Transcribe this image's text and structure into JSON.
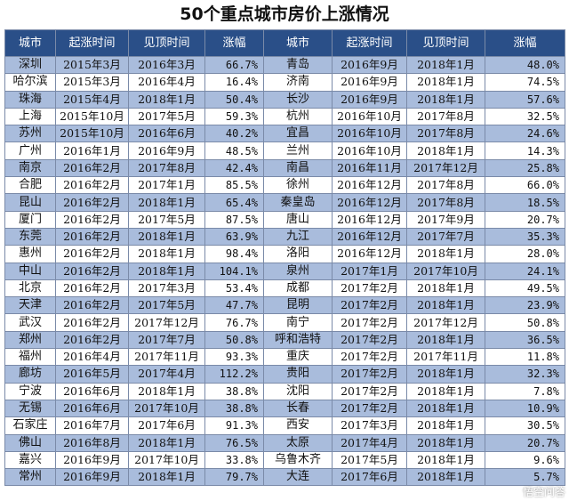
{
  "title": "50个重点城市房价上涨情况",
  "headers": [
    "城市",
    "起涨时间",
    "见顶时间",
    "涨幅",
    "城市",
    "起涨时间",
    "见顶时间",
    "涨幅"
  ],
  "rows": [
    [
      "深圳",
      "2015年3月",
      "2016年3月",
      "66.7%",
      "青岛",
      "2016年9月",
      "2018年1月",
      "48.0%"
    ],
    [
      "哈尔滨",
      "2015年3月",
      "2016年4月",
      "16.4%",
      "济南",
      "2016年9月",
      "2018年1月",
      "74.5%"
    ],
    [
      "珠海",
      "2015年4月",
      "2018年1月",
      "50.4%",
      "长沙",
      "2016年9月",
      "2018年1月",
      "57.6%"
    ],
    [
      "上海",
      "2015年10月",
      "2017年5月",
      "59.3%",
      "杭州",
      "2016年10月",
      "2017年8月",
      "32.5%"
    ],
    [
      "苏州",
      "2015年10月",
      "2016年6月",
      "40.2%",
      "宜昌",
      "2016年10月",
      "2017年8月",
      "24.6%"
    ],
    [
      "广州",
      "2016年1月",
      "2016年9月",
      "48.5%",
      "兰州",
      "2016年10月",
      "2018年1月",
      "14.3%"
    ],
    [
      "南京",
      "2016年2月",
      "2017年8月",
      "42.4%",
      "南昌",
      "2016年11月",
      "2017年12月",
      "25.8%"
    ],
    [
      "合肥",
      "2016年2月",
      "2017年1月",
      "85.5%",
      "徐州",
      "2016年12月",
      "2017年8月",
      "66.0%"
    ],
    [
      "昆山",
      "2016年2月",
      "2018年1月",
      "65.4%",
      "秦皇岛",
      "2016年12月",
      "2017年8月",
      "18.5%"
    ],
    [
      "厦门",
      "2016年2月",
      "2017年5月",
      "87.5%",
      "唐山",
      "2016年12月",
      "2017年9月",
      "20.7%"
    ],
    [
      "东莞",
      "2016年2月",
      "2018年1月",
      "63.9%",
      "九江",
      "2016年12月",
      "2017年7月",
      "35.3%"
    ],
    [
      "惠州",
      "2016年2月",
      "2018年1月",
      "98.4%",
      "洛阳",
      "2016年12月",
      "2018年1月",
      "28.0%"
    ],
    [
      "中山",
      "2016年2月",
      "2018年1月",
      "104.1%",
      "泉州",
      "2017年1月",
      "2017年10月",
      "24.1%"
    ],
    [
      "北京",
      "2016年2月",
      "2017年3月",
      "53.4%",
      "成都",
      "2017年2月",
      "2018年1月",
      "49.5%"
    ],
    [
      "天津",
      "2016年2月",
      "2017年5月",
      "47.7%",
      "昆明",
      "2017年2月",
      "2018年1月",
      "23.9%"
    ],
    [
      "武汉",
      "2016年2月",
      "2017年12月",
      "76.7%",
      "南宁",
      "2017年2月",
      "2017年12月",
      "50.8%"
    ],
    [
      "郑州",
      "2016年2月",
      "2017年7月",
      "50.8%",
      "呼和浩特",
      "2017年2月",
      "2018年1月",
      "36.5%"
    ],
    [
      "福州",
      "2016年4月",
      "2017年11月",
      "93.3%",
      "重庆",
      "2017年2月",
      "2017年11月",
      "11.8%"
    ],
    [
      "廊坊",
      "2016年5月",
      "2017年4月",
      "112.2%",
      "贵阳",
      "2017年2月",
      "2018年1月",
      "32.3%"
    ],
    [
      "宁波",
      "2016年6月",
      "2018年1月",
      "38.8%",
      "沈阳",
      "2017年2月",
      "2018年1月",
      "7.8%"
    ],
    [
      "无锡",
      "2016年6月",
      "2017年10月",
      "38.8%",
      "长春",
      "2017年2月",
      "2018年1月",
      "10.9%"
    ],
    [
      "石家庄",
      "2016年7月",
      "2017年6月",
      "91.3%",
      "西安",
      "2017年3月",
      "2018年1月",
      "30.5%"
    ],
    [
      "佛山",
      "2016年8月",
      "2018年1月",
      "76.5%",
      "太原",
      "2017年4月",
      "2018年1月",
      "20.7%"
    ],
    [
      "嘉兴",
      "2016年9月",
      "2017年10月",
      "33.8%",
      "乌鲁木齐",
      "2017年5月",
      "2018年1月",
      "9.6%"
    ],
    [
      "常州",
      "2016年9月",
      "2018年1月",
      "79.7%",
      "大连",
      "2017年6月",
      "2018年1月",
      "5.7%"
    ]
  ],
  "watermark": "悟空问答",
  "colors": {
    "header_bg": "#2a4f88",
    "row_alt_bg": "#a9bcdc",
    "row_bg": "#ffffff"
  }
}
